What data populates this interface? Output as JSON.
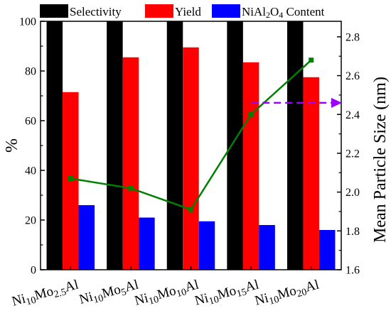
{
  "chart_data": {
    "type": "bar",
    "categories": [
      {
        "base": "Ni",
        "sub1": "10",
        "mid": "Mo",
        "sub2": "2.5",
        "tail": "Al"
      },
      {
        "base": "Ni",
        "sub1": "10",
        "mid": "Mo",
        "sub2": "5",
        "tail": "Al"
      },
      {
        "base": "Ni",
        "sub1": "10",
        "mid": "Mo",
        "sub2": "10",
        "tail": "Al"
      },
      {
        "base": "Ni",
        "sub1": "10",
        "mid": "Mo",
        "sub2": "15",
        "tail": "Al"
      },
      {
        "base": "Ni",
        "sub1": "10",
        "mid": "Mo",
        "sub2": "20",
        "tail": "Al"
      }
    ],
    "series": [
      {
        "name": "Selectivity",
        "color": "#000000",
        "values": [
          100,
          100,
          100,
          100,
          100
        ]
      },
      {
        "name": "Yield",
        "color": "#ff0000",
        "values": [
          71.5,
          85.5,
          89.5,
          83.5,
          77.5
        ]
      },
      {
        "name": "NiAl2O4 Content",
        "name_parts": [
          "NiAl",
          "2",
          "O",
          "4",
          " Content"
        ],
        "color": "#0000ff",
        "values": [
          26,
          21,
          19.5,
          18,
          16
        ]
      }
    ],
    "line_series": {
      "color": "#008000",
      "axis": "right",
      "values": [
        2.07,
        2.02,
        1.91,
        2.4,
        2.68
      ]
    },
    "ylabel": "%",
    "ylabel_right": "Mean Particle Size (nm)",
    "ylim": [
      0,
      100
    ],
    "ylim_right": [
      1.6,
      2.88
    ],
    "y_ticks": [
      0,
      20,
      40,
      60,
      80,
      100
    ],
    "y_right_ticks": [
      1.6,
      1.8,
      2.0,
      2.2,
      2.4,
      2.6,
      2.8
    ],
    "legend_position": "top",
    "annotation": {
      "type": "dashed-arrow",
      "color": "#9900ff",
      "points_to": "right axis",
      "at_value": 2.46,
      "from_category_index": 3
    }
  }
}
